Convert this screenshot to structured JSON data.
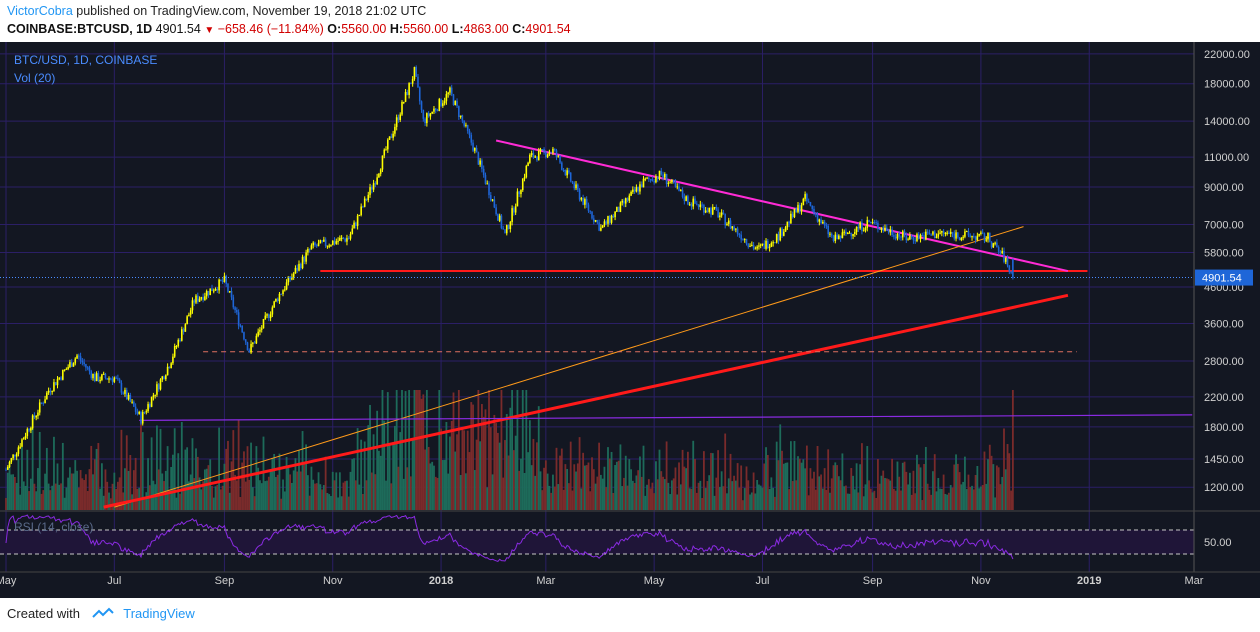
{
  "header": {
    "author": "VictorCobra",
    "published_text": "published on TradingView.com, November 19, 2018 21:02 UTC"
  },
  "quote": {
    "symbol": "COINBASE:BTCUSD, 1D",
    "last": "4901.54",
    "change": "−658.46 (−11.84%)",
    "o_label": "O:",
    "o": "5560.00",
    "h_label": "H:",
    "h": "5560.00",
    "l_label": "L:",
    "l": "4863.00",
    "c_label": "C:",
    "c": "4901.54"
  },
  "footer": {
    "created_with": "Created with",
    "brand": "TradingView"
  },
  "colors": {
    "background": "#131722",
    "grid": "#2b1f66",
    "candle_up": "#ffff00",
    "candle_down": "#1e66d8",
    "vol_up": "#1d6b5a",
    "vol_down": "#7a2b2b",
    "red_line": "#ff1a1a",
    "magenta_line": "#ff2bd6",
    "orange_line": "#ff9a1a",
    "purple_line": "#8a2be2",
    "rsi_line": "#8a2be2",
    "price_label_bg": "#1e66d8",
    "axis_text": "#d0d0d0"
  },
  "chart_data": {
    "type": "candlestick",
    "title": "BTC/USD, 1D, COINBASE",
    "indicator_volume": "Vol (20)",
    "indicator_rsi": "RSI (14, close)",
    "y_scale": "log",
    "ylim": [
      1030,
      23500
    ],
    "y_ticks": [
      "22000.00",
      "18000.00",
      "14000.00",
      "11000.00",
      "9000.00",
      "7000.00",
      "5800.00",
      "4600.00",
      "3600.00",
      "2800.00",
      "2200.00",
      "1800.00",
      "1450.00",
      "1200.00"
    ],
    "y_tick_values": [
      22000,
      18000,
      14000,
      11000,
      9000,
      7000,
      5800,
      4600,
      3600,
      2800,
      2200,
      1800,
      1450,
      1200
    ],
    "rsi_tick": "50.00",
    "last_price_label": "4901.54",
    "last_price": 4901.54,
    "x_range": [
      "2017-05-01",
      "2019-03-01"
    ],
    "x_ticks": [
      {
        "label": "May",
        "date": "2017-05-01",
        "bold": false
      },
      {
        "label": "Jul",
        "date": "2017-07-01",
        "bold": false
      },
      {
        "label": "Sep",
        "date": "2017-09-01",
        "bold": false
      },
      {
        "label": "Nov",
        "date": "2017-11-01",
        "bold": false
      },
      {
        "label": "2018",
        "date": "2018-01-01",
        "bold": true
      },
      {
        "label": "Mar",
        "date": "2018-03-01",
        "bold": false
      },
      {
        "label": "May",
        "date": "2018-05-01",
        "bold": false
      },
      {
        "label": "Jul",
        "date": "2018-07-01",
        "bold": false
      },
      {
        "label": "Sep",
        "date": "2018-09-01",
        "bold": false
      },
      {
        "label": "Nov",
        "date": "2018-11-01",
        "bold": false
      },
      {
        "label": "2019",
        "date": "2019-01-01",
        "bold": true
      },
      {
        "label": "Mar",
        "date": "2019-03-01",
        "bold": false
      }
    ],
    "price_path": [
      [
        "2017-05-01",
        1350
      ],
      [
        "2017-05-25",
        2300
      ],
      [
        "2017-06-10",
        2900
      ],
      [
        "2017-06-20",
        2500
      ],
      [
        "2017-07-01",
        2500
      ],
      [
        "2017-07-16",
        1900
      ],
      [
        "2017-08-01",
        2750
      ],
      [
        "2017-08-15",
        4200
      ],
      [
        "2017-09-01",
        4800
      ],
      [
        "2017-09-15",
        3000
      ],
      [
        "2017-10-01",
        4300
      ],
      [
        "2017-10-20",
        6000
      ],
      [
        "2017-11-10",
        6400
      ],
      [
        "2017-11-25",
        9500
      ],
      [
        "2017-12-17",
        19500
      ],
      [
        "2017-12-22",
        14000
      ],
      [
        "2018-01-06",
        17000
      ],
      [
        "2018-01-20",
        11500
      ],
      [
        "2018-02-06",
        6500
      ],
      [
        "2018-02-20",
        11000
      ],
      [
        "2018-03-05",
        11500
      ],
      [
        "2018-03-20",
        8500
      ],
      [
        "2018-04-01",
        6800
      ],
      [
        "2018-04-25",
        9300
      ],
      [
        "2018-05-05",
        9800
      ],
      [
        "2018-05-20",
        8200
      ],
      [
        "2018-06-05",
        7600
      ],
      [
        "2018-06-28",
        5900
      ],
      [
        "2018-07-10",
        6500
      ],
      [
        "2018-07-25",
        8300
      ],
      [
        "2018-08-10",
        6300
      ],
      [
        "2018-08-30",
        7100
      ],
      [
        "2018-09-05",
        6900
      ],
      [
        "2018-09-20",
        6400
      ],
      [
        "2018-10-10",
        6600
      ],
      [
        "2018-11-05",
        6400
      ],
      [
        "2018-11-14",
        5600
      ],
      [
        "2018-11-19",
        4901.54
      ]
    ],
    "annotations": [
      {
        "name": "horizontal-support-red",
        "from": [
          "2017-10-25",
          5120
        ],
        "to": [
          "2018-12-31",
          5120
        ]
      },
      {
        "name": "descending-trendline-magenta",
        "from": [
          "2018-02-01",
          12300
        ],
        "to": [
          "2018-12-20",
          5120
        ]
      },
      {
        "name": "rising-trendline-orange",
        "from": [
          "2017-07-01",
          1050
        ],
        "to": [
          "2018-11-25",
          6900
        ]
      },
      {
        "name": "rising-trendline-red",
        "from": [
          "2017-06-25",
          1050
        ],
        "to": [
          "2018-12-20",
          4350
        ]
      },
      {
        "name": "dashed-level-salmon",
        "from": [
          "2017-08-20",
          2980
        ],
        "to": [
          "2018-12-25",
          2980
        ]
      },
      {
        "name": "purple-level",
        "from": [
          "2017-07-15",
          1880
        ],
        "to": [
          "2019-02-28",
          1950
        ]
      }
    ]
  }
}
